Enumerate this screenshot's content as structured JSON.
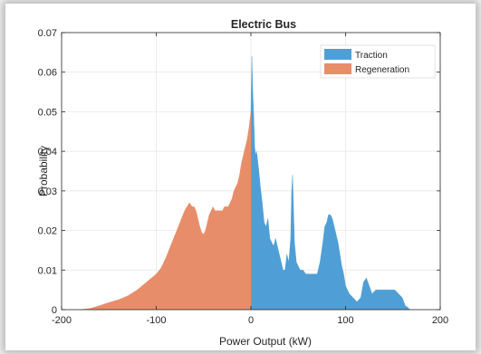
{
  "chart_data": {
    "type": "area",
    "title": "Electric Bus",
    "xlabel": "Power Output (kW)",
    "ylabel": "Probability",
    "xlim": [
      -200,
      200
    ],
    "ylim": [
      0,
      0.07
    ],
    "xticks": [
      -200,
      -100,
      0,
      100,
      200
    ],
    "yticks": [
      0,
      0.01,
      0.02,
      0.03,
      0.04,
      0.05,
      0.06,
      0.07
    ],
    "xtick_labels": [
      "-200",
      "-100",
      "0",
      "100",
      "200"
    ],
    "ytick_labels": [
      "0",
      "0.01",
      "0.02",
      "0.03",
      "0.04",
      "0.05",
      "0.06",
      "0.07"
    ],
    "grid": true,
    "legend_position": "top-right",
    "series": [
      {
        "name": "Traction",
        "color": "#4f9fd6",
        "x": [
          0,
          1,
          2,
          3,
          4,
          5,
          6,
          8,
          10,
          12,
          14,
          16,
          18,
          20,
          22,
          24,
          26,
          28,
          30,
          32,
          34,
          36,
          38,
          40,
          42,
          43,
          44,
          45,
          46,
          48,
          50,
          52,
          55,
          58,
          61,
          64,
          67,
          70,
          73,
          76,
          78,
          80,
          82,
          84,
          86,
          88,
          90,
          92,
          94,
          96,
          98,
          100,
          104,
          108,
          112,
          116,
          119,
          122,
          125,
          128,
          132,
          136,
          140,
          144,
          148,
          152,
          156,
          160,
          163,
          166,
          168
        ],
        "y": [
          0.05,
          0.064,
          0.055,
          0.049,
          0.041,
          0.039,
          0.04,
          0.036,
          0.031,
          0.027,
          0.022,
          0.021,
          0.023,
          0.018,
          0.017,
          0.016,
          0.018,
          0.016,
          0.014,
          0.012,
          0.01,
          0.01,
          0.014,
          0.012,
          0.018,
          0.03,
          0.034,
          0.026,
          0.017,
          0.012,
          0.011,
          0.01,
          0.01,
          0.009,
          0.009,
          0.009,
          0.009,
          0.009,
          0.012,
          0.017,
          0.021,
          0.022,
          0.024,
          0.024,
          0.023,
          0.021,
          0.019,
          0.017,
          0.014,
          0.011,
          0.009,
          0.006,
          0.004,
          0.003,
          0.002,
          0.003,
          0.007,
          0.008,
          0.006,
          0.004,
          0.005,
          0.005,
          0.005,
          0.005,
          0.005,
          0.005,
          0.004,
          0.003,
          0.001,
          0.0005,
          0
        ]
      },
      {
        "name": "Regeneration",
        "color": "#e88d6a",
        "x": [
          -180,
          -170,
          -160,
          -150,
          -140,
          -130,
          -120,
          -110,
          -100,
          -95,
          -90,
          -85,
          -80,
          -75,
          -70,
          -65,
          -62,
          -60,
          -58,
          -56,
          -54,
          -52,
          -50,
          -48,
          -46,
          -44,
          -42,
          -40,
          -38,
          -36,
          -34,
          -32,
          -30,
          -28,
          -26,
          -24,
          -22,
          -20,
          -18,
          -16,
          -14,
          -12,
          -10,
          -8,
          -6,
          -4,
          -2,
          0
        ],
        "y": [
          0,
          0.0003,
          0.001,
          0.0018,
          0.0025,
          0.0035,
          0.005,
          0.007,
          0.009,
          0.0105,
          0.013,
          0.016,
          0.019,
          0.022,
          0.025,
          0.027,
          0.026,
          0.026,
          0.025,
          0.023,
          0.021,
          0.0195,
          0.019,
          0.02,
          0.022,
          0.024,
          0.025,
          0.026,
          0.025,
          0.025,
          0.025,
          0.025,
          0.025,
          0.026,
          0.026,
          0.026,
          0.027,
          0.028,
          0.03,
          0.031,
          0.032,
          0.034,
          0.037,
          0.039,
          0.041,
          0.043,
          0.046,
          0.05
        ]
      }
    ]
  }
}
